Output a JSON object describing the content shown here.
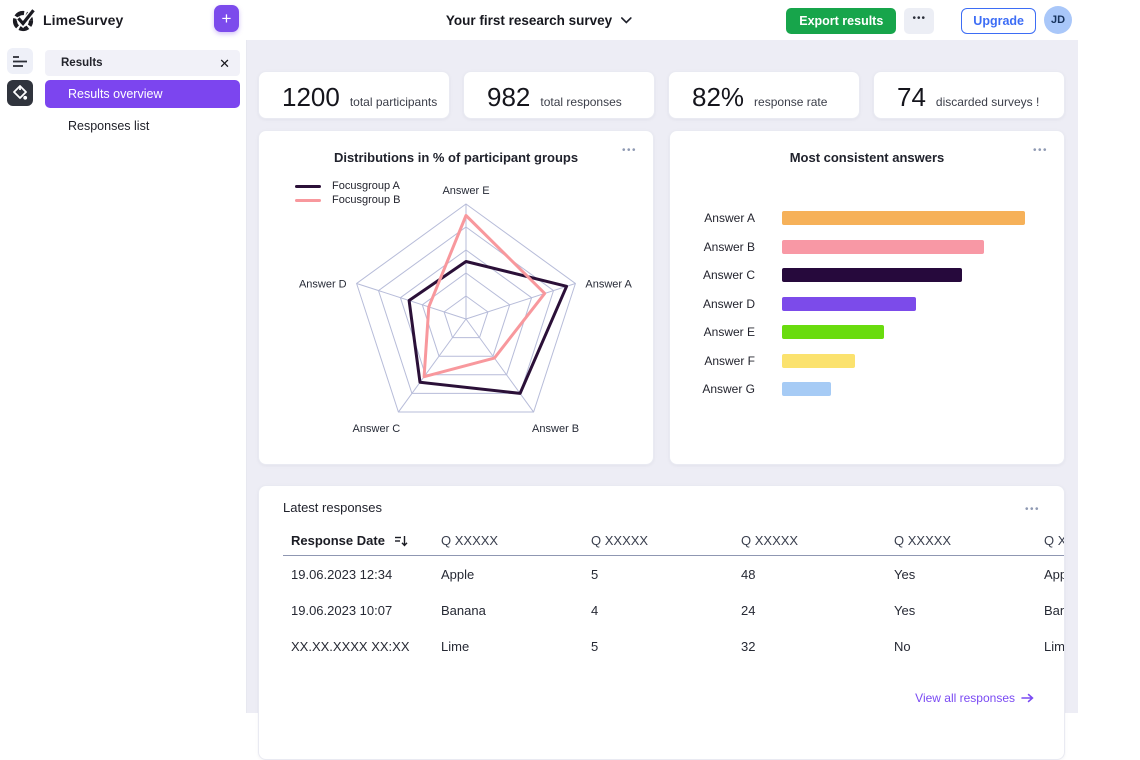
{
  "header": {
    "brand": "LimeSurvey",
    "new_button_label": "+",
    "survey_title": "Your first research survey",
    "export_button": "Export results",
    "upgrade_button": "Upgrade",
    "avatar_initials": "JD"
  },
  "ui": {
    "menu_dots": "•••",
    "close_glyph": "✕"
  },
  "sidebar": {
    "panel_title": "Results",
    "items": [
      {
        "label": "Results overview",
        "active": true
      },
      {
        "label": "Responses list",
        "active": false
      }
    ]
  },
  "stats": [
    {
      "value": "1200",
      "label": "total participants"
    },
    {
      "value": "982",
      "label": "total responses"
    },
    {
      "value": "82%",
      "label": "response rate"
    },
    {
      "value": "74",
      "label": "discarded surveys !"
    }
  ],
  "chart_data": [
    {
      "type": "radar",
      "title": "Distributions in % of participant groups",
      "axes": [
        "Answer E",
        "Answer A",
        "Answer B",
        "Answer C",
        "Answer D"
      ],
      "rings": 5,
      "range": [
        0,
        100
      ],
      "grid_color": "#b7bcd9",
      "legend_position": "top-left",
      "series": [
        {
          "name": "Focusgroup A",
          "color": "#2b1038",
          "values": [
            50,
            92,
            80,
            68,
            52
          ]
        },
        {
          "name": "Focusgroup B",
          "color": "#f8989d",
          "values": [
            90,
            72,
            42,
            62,
            34
          ]
        }
      ]
    },
    {
      "type": "bar",
      "title": "Most consistent answers",
      "orientation": "horizontal",
      "categories": [
        "Answer A",
        "Answer B",
        "Answer C",
        "Answer D",
        "Answer E",
        "Answer F",
        "Answer G"
      ],
      "values": [
        100,
        83,
        74,
        55,
        42,
        30,
        20
      ],
      "colors": [
        "#f6b159",
        "#f898a5",
        "#26093c",
        "#7c4bea",
        "#69dc0e",
        "#fbe26e",
        "#a6cbf5"
      ],
      "xlim": [
        0,
        100
      ],
      "grid": false,
      "legend": false
    }
  ],
  "latest_responses": {
    "title": "Latest responses",
    "columns": [
      "Response Date",
      "Q XXXXX",
      "Q XXXXX",
      "Q XXXXX",
      "Q XXXXX",
      "Q XXXXX"
    ],
    "sort_column": "Response Date",
    "rows": [
      [
        "19.06.2023 12:34",
        "Apple",
        "5",
        "48",
        "Yes",
        "Apple"
      ],
      [
        "19.06.2023 10:07",
        "Banana",
        "4",
        "24",
        "Yes",
        "Banana"
      ],
      [
        "XX.XX.XXXX XX:XX",
        "Lime",
        "5",
        "32",
        "No",
        "Lime"
      ]
    ],
    "view_all_label": "View all responses"
  }
}
